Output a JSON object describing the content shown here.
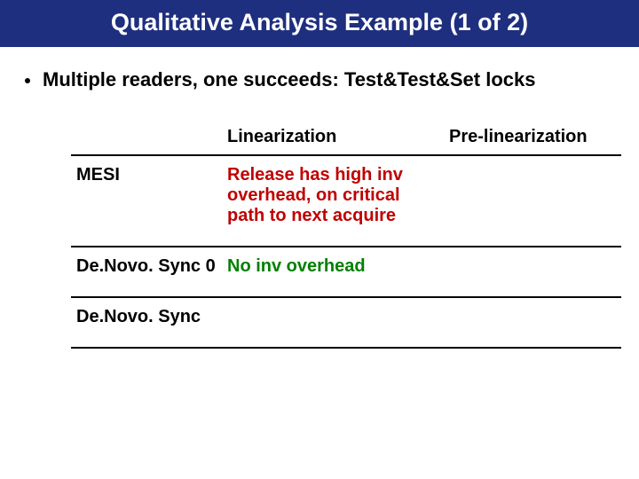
{
  "title": "Qualitative Analysis Example (1 of 2)",
  "bullet": "Multiple readers, one succeeds: Test&Test&Set locks",
  "colors": {
    "title_bg": "#1f2f7f",
    "title_fg": "#ffffff",
    "green": "#008000",
    "red": "#c00000",
    "border": "#000000"
  },
  "table": {
    "columns": [
      "",
      "Linearization",
      "Pre-linearization"
    ],
    "rows": [
      {
        "name": "MESI",
        "linearization": "Release has high inv overhead, on critical path to next acquire",
        "lin_color": "red",
        "pre": ""
      },
      {
        "name": "De.Novo. Sync 0",
        "linearization": "No inv overhead",
        "lin_color": "green",
        "pre": ""
      },
      {
        "name": "De.Novo. Sync",
        "linearization": "",
        "lin_color": "",
        "pre": ""
      }
    ]
  }
}
